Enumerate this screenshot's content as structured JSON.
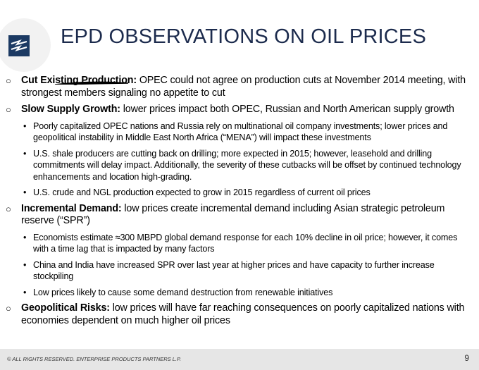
{
  "header": {
    "title": "EPD OBSERVATIONS ON OIL PRICES"
  },
  "bullets": [
    {
      "lead": "Cut Existing Production:",
      "text": "OPEC could not agree on production cuts at November 2014 meeting, with strongest members signaling no appetite to cut",
      "sub": []
    },
    {
      "lead": "Slow Supply Growth:",
      "text": "lower prices impact both OPEC, Russian and North American supply growth",
      "sub": [
        "Poorly capitalized OPEC nations and Russia rely on multinational oil company investments;  lower prices and geopolitical instability in Middle East North Africa (“MENA”) will impact these investments",
        "U.S. shale producers are cutting back on drilling; more expected in 2015; however, leasehold and drilling commitments will delay impact.  Additionally, the severity of these cutbacks will be offset by continued technology enhancements and location high-grading.",
        "U.S. crude and NGL production expected to grow in 2015 regardless of current oil prices"
      ]
    },
    {
      "lead": "Incremental Demand:",
      "text": "low prices create incremental demand including Asian strategic petroleum reserve (“SPR”)",
      "sub": [
        "Economists estimate ≈300 MBPD global demand response for each 10% decline in oil price; however, it comes with a time lag that is impacted by many factors",
        "China and India have increased SPR over last year at higher prices and have capacity to further increase stockpiling",
        "Low prices likely to cause some demand destruction from renewable initiatives"
      ]
    },
    {
      "lead": "Geopolitical Risks:",
      "text": "low prices will have far reaching consequences on poorly capitalized nations with economies dependent on much higher oil prices",
      "sub": []
    }
  ],
  "footer": {
    "copyright": "© ALL RIGHTS RESERVED. ENTERPRISE PRODUCTS PARTNERS L.P.",
    "page": 9
  }
}
